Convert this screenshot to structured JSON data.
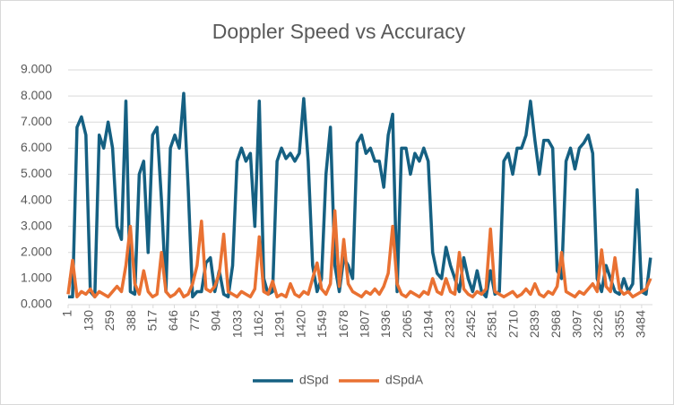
{
  "chart_data": {
    "type": "line",
    "title": "Doppler Speed vs Accuracy",
    "x": [
      1,
      28,
      55,
      82,
      109,
      136,
      163,
      190,
      217,
      244,
      271,
      298,
      325,
      352,
      379,
      406,
      433,
      460,
      487,
      514,
      541,
      568,
      595,
      622,
      649,
      676,
      703,
      730,
      757,
      784,
      811,
      838,
      865,
      892,
      919,
      946,
      973,
      1000,
      1027,
      1054,
      1081,
      1108,
      1135,
      1162,
      1189,
      1216,
      1243,
      1270,
      1297,
      1324,
      1351,
      1378,
      1405,
      1432,
      1459,
      1486,
      1513,
      1540,
      1567,
      1594,
      1621,
      1648,
      1675,
      1702,
      1729,
      1756,
      1783,
      1810,
      1837,
      1864,
      1891,
      1918,
      1945,
      1972,
      1999,
      2026,
      2053,
      2080,
      2107,
      2134,
      2161,
      2188,
      2215,
      2242,
      2269,
      2296,
      2323,
      2350,
      2377,
      2404,
      2431,
      2458,
      2485,
      2512,
      2539,
      2566,
      2593,
      2620,
      2647,
      2674,
      2701,
      2728,
      2755,
      2782,
      2809,
      2836,
      2863,
      2890,
      2917,
      2944,
      2971,
      2998,
      3025,
      3052,
      3079,
      3106,
      3133,
      3160,
      3187,
      3214,
      3241,
      3268,
      3295,
      3322,
      3349,
      3376,
      3403,
      3430,
      3457,
      3484,
      3511,
      3538
    ],
    "series": [
      {
        "name": "dSpd",
        "color": "#156082",
        "values": [
          0.3,
          0.3,
          6.8,
          7.2,
          6.5,
          0.5,
          0.3,
          6.5,
          6.0,
          7.0,
          6.0,
          3.0,
          2.5,
          7.8,
          0.5,
          0.4,
          5.0,
          5.5,
          2.0,
          6.5,
          6.8,
          4.0,
          0.5,
          6.0,
          6.5,
          6.0,
          8.1,
          4.5,
          0.3,
          0.5,
          0.5,
          1.6,
          1.8,
          0.5,
          1.3,
          0.4,
          0.3,
          1.5,
          5.5,
          6.0,
          5.5,
          5.8,
          3.0,
          7.8,
          1.0,
          0.4,
          0.5,
          5.5,
          6.0,
          5.6,
          5.8,
          5.5,
          5.8,
          7.9,
          5.5,
          1.5,
          0.5,
          1.0,
          5.0,
          6.8,
          1.5,
          0.5,
          1.8,
          1.5,
          1.0,
          6.2,
          6.5,
          5.8,
          6.0,
          5.5,
          5.5,
          4.5,
          6.5,
          7.3,
          0.5,
          6.0,
          6.0,
          5.0,
          5.8,
          5.5,
          6.0,
          5.5,
          2.0,
          1.2,
          1.0,
          2.2,
          1.5,
          1.0,
          0.5,
          1.8,
          1.0,
          0.5,
          1.3,
          0.5,
          0.3,
          1.3,
          0.4,
          0.5,
          5.5,
          5.8,
          5.0,
          6.0,
          6.0,
          6.5,
          7.8,
          6.3,
          5.0,
          6.3,
          6.3,
          6.0,
          1.3,
          1.0,
          5.5,
          6.0,
          5.2,
          6.0,
          6.2,
          6.5,
          5.8,
          1.0,
          0.5,
          1.5,
          1.0,
          0.5,
          0.4,
          1.0,
          0.5,
          0.8,
          4.4,
          0.5,
          0.4,
          1.8
        ]
      },
      {
        "name": "dSpdA",
        "color": "#e97132",
        "values": [
          0.4,
          1.7,
          0.3,
          0.5,
          0.4,
          0.6,
          0.3,
          0.5,
          0.4,
          0.3,
          0.5,
          0.7,
          0.5,
          1.5,
          3.0,
          0.8,
          0.4,
          1.3,
          0.5,
          0.3,
          0.4,
          2.0,
          0.5,
          0.3,
          0.4,
          0.6,
          0.3,
          0.4,
          0.8,
          1.5,
          3.2,
          0.6,
          0.5,
          0.7,
          1.2,
          2.7,
          0.5,
          0.4,
          0.3,
          0.5,
          0.4,
          0.3,
          0.6,
          2.6,
          0.5,
          0.4,
          0.9,
          0.3,
          0.4,
          0.3,
          0.8,
          0.4,
          0.3,
          0.5,
          0.4,
          1.0,
          1.6,
          0.6,
          0.4,
          0.8,
          3.6,
          0.7,
          2.5,
          0.8,
          0.5,
          0.4,
          0.3,
          0.5,
          0.4,
          0.6,
          0.4,
          0.7,
          1.2,
          3.0,
          0.8,
          0.4,
          0.3,
          0.5,
          0.4,
          0.3,
          0.5,
          0.4,
          1.0,
          0.5,
          0.4,
          1.0,
          0.5,
          0.4,
          2.0,
          0.6,
          0.4,
          0.3,
          0.5,
          0.4,
          0.6,
          2.9,
          0.5,
          0.4,
          0.3,
          0.4,
          0.5,
          0.3,
          0.4,
          0.6,
          0.4,
          0.8,
          0.4,
          0.3,
          0.5,
          0.4,
          0.7,
          2.0,
          0.5,
          0.4,
          0.3,
          0.5,
          0.4,
          0.6,
          0.8,
          0.5,
          2.1,
          0.7,
          0.5,
          1.8,
          0.6,
          0.4,
          0.5,
          0.3,
          0.4,
          0.5,
          0.6,
          1.0
        ]
      }
    ],
    "xlim": [
      1,
      3550
    ],
    "xticks": [
      1,
      130,
      259,
      388,
      517,
      646,
      775,
      904,
      1033,
      1162,
      1291,
      1420,
      1549,
      1678,
      1807,
      1936,
      2065,
      2194,
      2323,
      2452,
      2581,
      2710,
      2839,
      2968,
      3097,
      3226,
      3355,
      3484
    ],
    "ylim": [
      0,
      9
    ],
    "yticks": [
      {
        "value": 0,
        "label": "0.000"
      },
      {
        "value": 1,
        "label": "1.000"
      },
      {
        "value": 2,
        "label": "2.000"
      },
      {
        "value": 3,
        "label": "3.000"
      },
      {
        "value": 4,
        "label": "4.000"
      },
      {
        "value": 5,
        "label": "5.000"
      },
      {
        "value": 6,
        "label": "6.000"
      },
      {
        "value": 7,
        "label": "7.000"
      },
      {
        "value": 8,
        "label": "8.000"
      },
      {
        "value": 9,
        "label": "9.000"
      }
    ],
    "grid": true,
    "legend": "bottom"
  }
}
